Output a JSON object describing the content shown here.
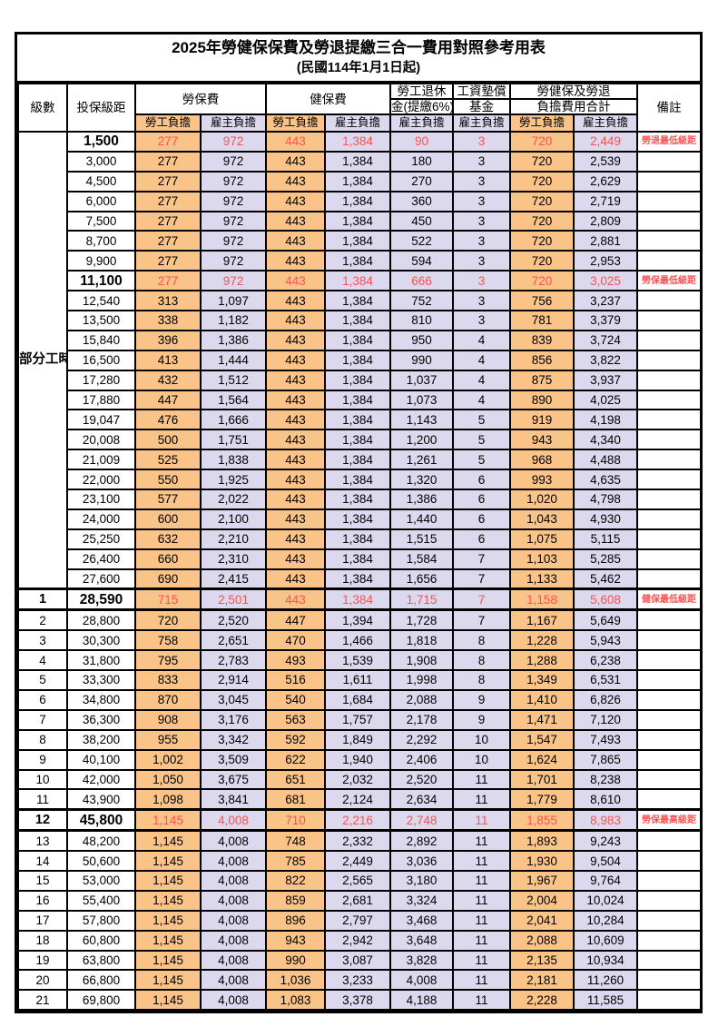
{
  "title": "2025年勞健保保費及勞退提繳三合一費用對照參考用表",
  "subtitle": "(民國114年1月1日起)",
  "colors": {
    "employee_cell_orange": "#FAC489",
    "employer_cell_lavender": "#DCD9EE",
    "highlight_red": "#FF5050",
    "border_black": "#000000"
  },
  "header": {
    "level_label": "級數",
    "bracket_label": "投保級距",
    "labor_ins_label": "勞保費",
    "health_ins_label": "健保費",
    "pension_line1": "勞工退休",
    "pension_line2": "金(提繳6%)",
    "fund_line1": "工資墊償",
    "fund_line2": "基金",
    "total_line1": "勞健保及勞退",
    "total_line2": "負擔費用合計",
    "note_label": "備註",
    "employee_label": "勞工負擔",
    "employer_label": "雇主負擔"
  },
  "part_time": {
    "label": "部分工時",
    "rowspan": 23
  },
  "rows": [
    {
      "level": "",
      "bracket": "1,500",
      "values": [
        "277",
        "972",
        "443",
        "1,384",
        "90",
        "3",
        "720",
        "2,449"
      ],
      "note": "勞退最低級距",
      "highlight": true,
      "emphasis": true
    },
    {
      "level": "",
      "bracket": "3,000",
      "values": [
        "277",
        "972",
        "443",
        "1,384",
        "180",
        "3",
        "720",
        "2,539"
      ],
      "note": ""
    },
    {
      "level": "",
      "bracket": "4,500",
      "values": [
        "277",
        "972",
        "443",
        "1,384",
        "270",
        "3",
        "720",
        "2,629"
      ],
      "note": ""
    },
    {
      "level": "",
      "bracket": "6,000",
      "values": [
        "277",
        "972",
        "443",
        "1,384",
        "360",
        "3",
        "720",
        "2,719"
      ],
      "note": ""
    },
    {
      "level": "",
      "bracket": "7,500",
      "values": [
        "277",
        "972",
        "443",
        "1,384",
        "450",
        "3",
        "720",
        "2,809"
      ],
      "note": ""
    },
    {
      "level": "",
      "bracket": "8,700",
      "values": [
        "277",
        "972",
        "443",
        "1,384",
        "522",
        "3",
        "720",
        "2,881"
      ],
      "note": ""
    },
    {
      "level": "",
      "bracket": "9,900",
      "values": [
        "277",
        "972",
        "443",
        "1,384",
        "594",
        "3",
        "720",
        "2,953"
      ],
      "note": ""
    },
    {
      "level": "",
      "bracket": "11,100",
      "values": [
        "277",
        "972",
        "443",
        "1,384",
        "666",
        "3",
        "720",
        "3,025"
      ],
      "note": "勞保最低級距",
      "highlight": true,
      "emphasis": true
    },
    {
      "level": "",
      "bracket": "12,540",
      "values": [
        "313",
        "1,097",
        "443",
        "1,384",
        "752",
        "3",
        "756",
        "3,237"
      ],
      "note": ""
    },
    {
      "level": "",
      "bracket": "13,500",
      "values": [
        "338",
        "1,182",
        "443",
        "1,384",
        "810",
        "3",
        "781",
        "3,379"
      ],
      "note": ""
    },
    {
      "level": "",
      "bracket": "15,840",
      "values": [
        "396",
        "1,386",
        "443",
        "1,384",
        "950",
        "4",
        "839",
        "3,724"
      ],
      "note": ""
    },
    {
      "level": "",
      "bracket": "16,500",
      "values": [
        "413",
        "1,444",
        "443",
        "1,384",
        "990",
        "4",
        "856",
        "3,822"
      ],
      "note": ""
    },
    {
      "level": "",
      "bracket": "17,280",
      "values": [
        "432",
        "1,512",
        "443",
        "1,384",
        "1,037",
        "4",
        "875",
        "3,937"
      ],
      "note": ""
    },
    {
      "level": "",
      "bracket": "17,880",
      "values": [
        "447",
        "1,564",
        "443",
        "1,384",
        "1,073",
        "4",
        "890",
        "4,025"
      ],
      "note": ""
    },
    {
      "level": "",
      "bracket": "19,047",
      "values": [
        "476",
        "1,666",
        "443",
        "1,384",
        "1,143",
        "5",
        "919",
        "4,198"
      ],
      "note": ""
    },
    {
      "level": "",
      "bracket": "20,008",
      "values": [
        "500",
        "1,751",
        "443",
        "1,384",
        "1,200",
        "5",
        "943",
        "4,340"
      ],
      "note": ""
    },
    {
      "level": "",
      "bracket": "21,009",
      "values": [
        "525",
        "1,838",
        "443",
        "1,384",
        "1,261",
        "5",
        "968",
        "4,488"
      ],
      "note": ""
    },
    {
      "level": "",
      "bracket": "22,000",
      "values": [
        "550",
        "1,925",
        "443",
        "1,384",
        "1,320",
        "6",
        "993",
        "4,635"
      ],
      "note": ""
    },
    {
      "level": "",
      "bracket": "23,100",
      "values": [
        "577",
        "2,022",
        "443",
        "1,384",
        "1,386",
        "6",
        "1,020",
        "4,798"
      ],
      "note": ""
    },
    {
      "level": "",
      "bracket": "24,000",
      "values": [
        "600",
        "2,100",
        "443",
        "1,384",
        "1,440",
        "6",
        "1,043",
        "4,930"
      ],
      "note": ""
    },
    {
      "level": "",
      "bracket": "25,250",
      "values": [
        "632",
        "2,210",
        "443",
        "1,384",
        "1,515",
        "6",
        "1,075",
        "5,115"
      ],
      "note": ""
    },
    {
      "level": "",
      "bracket": "26,400",
      "values": [
        "660",
        "2,310",
        "443",
        "1,384",
        "1,584",
        "7",
        "1,103",
        "5,285"
      ],
      "note": ""
    },
    {
      "level": "",
      "bracket": "27,600",
      "values": [
        "690",
        "2,415",
        "443",
        "1,384",
        "1,656",
        "7",
        "1,133",
        "5,462"
      ],
      "note": ""
    },
    {
      "level": "1",
      "bracket": "28,590",
      "values": [
        "715",
        "2,501",
        "443",
        "1,384",
        "1,715",
        "7",
        "1,158",
        "5,608"
      ],
      "note": "健保最低級距",
      "highlight": true,
      "emphasis": true,
      "thick": true
    },
    {
      "level": "2",
      "bracket": "28,800",
      "values": [
        "720",
        "2,520",
        "447",
        "1,394",
        "1,728",
        "7",
        "1,167",
        "5,649"
      ],
      "note": ""
    },
    {
      "level": "3",
      "bracket": "30,300",
      "values": [
        "758",
        "2,651",
        "470",
        "1,466",
        "1,818",
        "8",
        "1,228",
        "5,943"
      ],
      "note": ""
    },
    {
      "level": "4",
      "bracket": "31,800",
      "values": [
        "795",
        "2,783",
        "493",
        "1,539",
        "1,908",
        "8",
        "1,288",
        "6,238"
      ],
      "note": ""
    },
    {
      "level": "5",
      "bracket": "33,300",
      "values": [
        "833",
        "2,914",
        "516",
        "1,611",
        "1,998",
        "8",
        "1,349",
        "6,531"
      ],
      "note": ""
    },
    {
      "level": "6",
      "bracket": "34,800",
      "values": [
        "870",
        "3,045",
        "540",
        "1,684",
        "2,088",
        "9",
        "1,410",
        "6,826"
      ],
      "note": ""
    },
    {
      "level": "7",
      "bracket": "36,300",
      "values": [
        "908",
        "3,176",
        "563",
        "1,757",
        "2,178",
        "9",
        "1,471",
        "7,120"
      ],
      "note": ""
    },
    {
      "level": "8",
      "bracket": "38,200",
      "values": [
        "955",
        "3,342",
        "592",
        "1,849",
        "2,292",
        "10",
        "1,547",
        "7,493"
      ],
      "note": ""
    },
    {
      "level": "9",
      "bracket": "40,100",
      "values": [
        "1,002",
        "3,509",
        "622",
        "1,940",
        "2,406",
        "10",
        "1,624",
        "7,865"
      ],
      "note": ""
    },
    {
      "level": "10",
      "bracket": "42,000",
      "values": [
        "1,050",
        "3,675",
        "651",
        "2,032",
        "2,520",
        "11",
        "1,701",
        "8,238"
      ],
      "note": ""
    },
    {
      "level": "11",
      "bracket": "43,900",
      "values": [
        "1,098",
        "3,841",
        "681",
        "2,124",
        "2,634",
        "11",
        "1,779",
        "8,610"
      ],
      "note": ""
    },
    {
      "level": "12",
      "bracket": "45,800",
      "values": [
        "1,145",
        "4,008",
        "710",
        "2,216",
        "2,748",
        "11",
        "1,855",
        "8,983"
      ],
      "note": "勞保最高級距",
      "highlight": true,
      "emphasis": true,
      "thick": true
    },
    {
      "level": "13",
      "bracket": "48,200",
      "values": [
        "1,145",
        "4,008",
        "748",
        "2,332",
        "2,892",
        "11",
        "1,893",
        "9,243"
      ],
      "note": ""
    },
    {
      "level": "14",
      "bracket": "50,600",
      "values": [
        "1,145",
        "4,008",
        "785",
        "2,449",
        "3,036",
        "11",
        "1,930",
        "9,504"
      ],
      "note": ""
    },
    {
      "level": "15",
      "bracket": "53,000",
      "values": [
        "1,145",
        "4,008",
        "822",
        "2,565",
        "3,180",
        "11",
        "1,967",
        "9,764"
      ],
      "note": ""
    },
    {
      "level": "16",
      "bracket": "55,400",
      "values": [
        "1,145",
        "4,008",
        "859",
        "2,681",
        "3,324",
        "11",
        "2,004",
        "10,024"
      ],
      "note": ""
    },
    {
      "level": "17",
      "bracket": "57,800",
      "values": [
        "1,145",
        "4,008",
        "896",
        "2,797",
        "3,468",
        "11",
        "2,041",
        "10,284"
      ],
      "note": ""
    },
    {
      "level": "18",
      "bracket": "60,800",
      "values": [
        "1,145",
        "4,008",
        "943",
        "2,942",
        "3,648",
        "11",
        "2,088",
        "10,609"
      ],
      "note": ""
    },
    {
      "level": "19",
      "bracket": "63,800",
      "values": [
        "1,145",
        "4,008",
        "990",
        "3,087",
        "3,828",
        "11",
        "2,135",
        "10,934"
      ],
      "note": ""
    },
    {
      "level": "20",
      "bracket": "66,800",
      "values": [
        "1,145",
        "4,008",
        "1,036",
        "3,233",
        "4,008",
        "11",
        "2,181",
        "11,260"
      ],
      "note": ""
    },
    {
      "level": "21",
      "bracket": "69,800",
      "values": [
        "1,145",
        "4,008",
        "1,083",
        "3,378",
        "4,188",
        "11",
        "2,228",
        "11,585"
      ],
      "note": ""
    }
  ]
}
